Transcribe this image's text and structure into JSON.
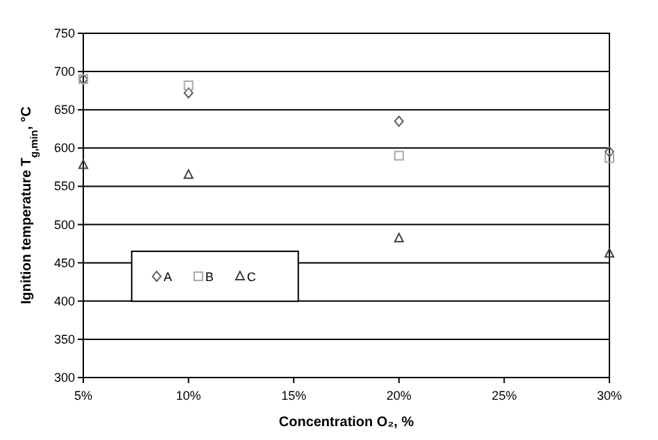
{
  "chart_data": {
    "type": "scatter",
    "xlabel": "Concentration O₂, %",
    "ylabel": "Ignition temperature T$_{g,min}$, °C",
    "x": [
      5,
      10,
      20,
      30
    ],
    "series": [
      {
        "name": "A",
        "color": "#606060",
        "marker": "diamond",
        "values": [
          690,
          672,
          635,
          595
        ]
      },
      {
        "name": "B",
        "color": "#a8a8a8",
        "marker": "square",
        "values": [
          690,
          682,
          590,
          587
        ]
      },
      {
        "name": "C",
        "color": "#404040",
        "marker": "triangle",
        "values": [
          578,
          565,
          482,
          462
        ]
      }
    ],
    "xlim": [
      5,
      30
    ],
    "xticks": [
      {
        "value": 5,
        "label": "5%"
      },
      {
        "value": 10,
        "label": "10%"
      },
      {
        "value": 15,
        "label": "15%"
      },
      {
        "value": 20,
        "label": "20%"
      },
      {
        "value": 25,
        "label": "25%"
      },
      {
        "value": 30,
        "label": "30%"
      }
    ],
    "ylim": [
      300,
      750
    ],
    "yticks": [
      300,
      350,
      400,
      450,
      500,
      550,
      600,
      650,
      700,
      750
    ],
    "grid": "y",
    "legend": "bottom left"
  }
}
